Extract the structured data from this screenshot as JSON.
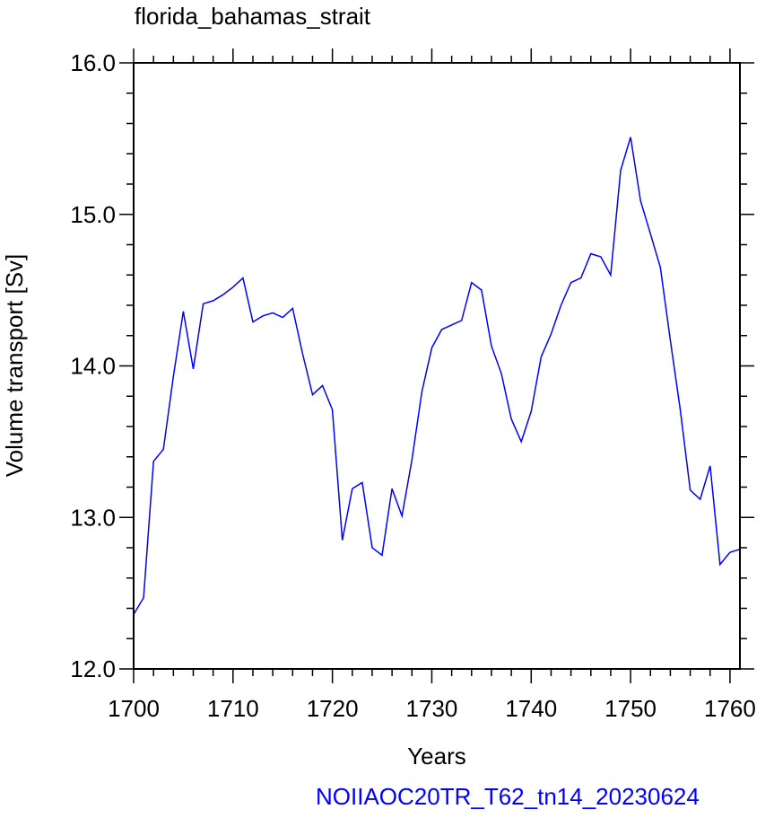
{
  "chart_data": {
    "type": "line",
    "title": "florida_bahamas_strait",
    "xlabel": "Years",
    "ylabel": "Volume transport [Sv]",
    "xlim": [
      1700,
      1761
    ],
    "ylim": [
      12.0,
      16.0
    ],
    "xticks": [
      1700,
      1710,
      1720,
      1730,
      1740,
      1750,
      1760
    ],
    "yticks": [
      12.0,
      13.0,
      14.0,
      15.0,
      16.0
    ],
    "ytick_labels": [
      "12.0",
      "13.0",
      "14.0",
      "15.0",
      "16.0"
    ],
    "grid": false,
    "series": [
      {
        "color": "#0000ff",
        "x": [
          1700,
          1701,
          1702,
          1703,
          1704,
          1705,
          1706,
          1707,
          1708,
          1709,
          1710,
          1711,
          1712,
          1713,
          1714,
          1715,
          1716,
          1717,
          1718,
          1719,
          1720,
          1721,
          1722,
          1723,
          1724,
          1725,
          1726,
          1727,
          1728,
          1729,
          1730,
          1731,
          1732,
          1733,
          1734,
          1735,
          1736,
          1737,
          1738,
          1739,
          1740,
          1741,
          1742,
          1743,
          1744,
          1745,
          1746,
          1747,
          1748,
          1749,
          1750,
          1751,
          1752,
          1753,
          1754,
          1755,
          1756,
          1757,
          1758,
          1759,
          1760,
          1761
        ],
        "y": [
          12.36,
          12.47,
          13.37,
          13.45,
          13.93,
          14.36,
          13.98,
          14.41,
          14.43,
          14.47,
          14.52,
          14.58,
          14.29,
          14.33,
          14.35,
          14.32,
          14.38,
          14.08,
          13.81,
          13.87,
          13.71,
          12.85,
          13.19,
          13.23,
          12.8,
          12.75,
          13.19,
          13.01,
          13.38,
          13.83,
          14.12,
          14.24,
          14.27,
          14.3,
          14.55,
          14.5,
          14.13,
          13.95,
          13.65,
          13.5,
          13.7,
          14.06,
          14.21,
          14.4,
          14.55,
          14.58,
          14.74,
          14.72,
          14.6,
          15.29,
          15.51,
          15.09,
          14.87,
          14.65,
          14.17,
          13.71,
          13.18,
          13.12,
          13.34,
          12.69,
          12.77,
          12.79
        ]
      }
    ]
  },
  "footer": {
    "caption": "NOIIAOC20TR_T62_tn14_20230624",
    "color": "#0000ff"
  }
}
